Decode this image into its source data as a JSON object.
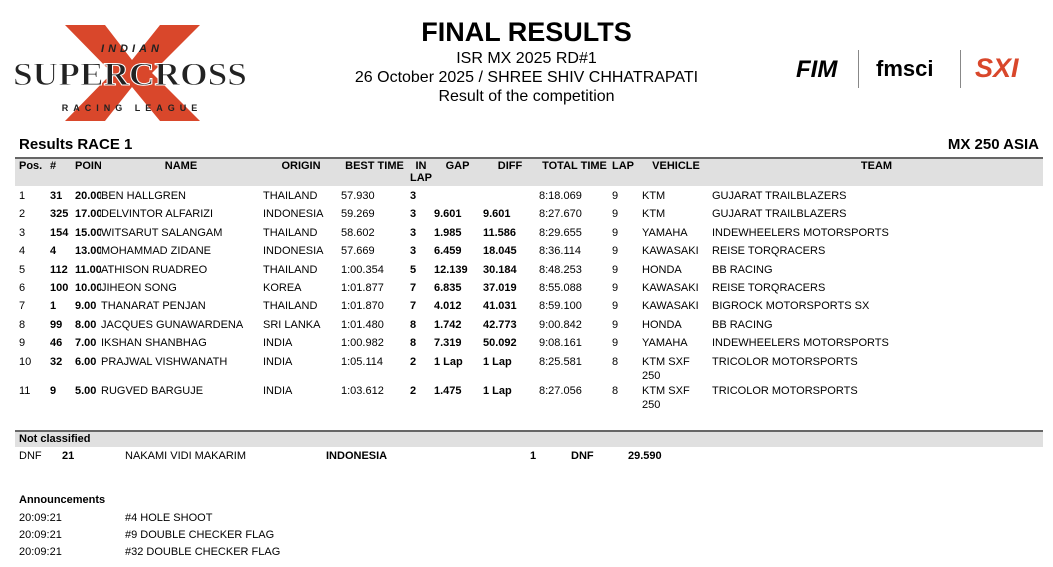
{
  "header": {
    "title": "FINAL RESULTS",
    "subtitle": "ISR MX 2025 RD#1",
    "date_venue": "26 October 2025 / SHREE SHIV CHHATRAPATI",
    "description": "Result of the competition"
  },
  "logo": {
    "top": "INDIAN",
    "main": "SUPERCROSS",
    "bottom": "RACING LEAGUE"
  },
  "partners": [
    "FIM",
    "fmsci",
    "SXI"
  ],
  "section": {
    "title": "Results RACE 1",
    "class": "MX 250 ASIA"
  },
  "table": {
    "columns": [
      "Pos.",
      "#",
      "POIN",
      "NAME",
      "ORIGIN",
      "BEST TIME",
      "IN LAP",
      "GAP",
      "DIFF",
      "TOTAL TIME",
      "LAP",
      "VEHICLE",
      "TEAM"
    ],
    "rows": [
      [
        "1",
        "31",
        "20.00",
        "BEN HALLGREN",
        "THAILAND",
        "57.930",
        "3",
        null,
        null,
        "8:18.069",
        "9",
        "KTM",
        "GUJARAT TRAILBLAZERS"
      ],
      [
        "2",
        "325",
        "17.00",
        "DELVINTOR ALFARIZI",
        "INDONESIA",
        "59.269",
        "3",
        "9.601",
        "9.601",
        "8:27.670",
        "9",
        "KTM",
        "GUJARAT TRAILBLAZERS"
      ],
      [
        "3",
        "154",
        "15.00",
        "WITSARUT SALANGAM",
        "THAILAND",
        "58.602",
        "3",
        "1.985",
        "11.586",
        "8:29.655",
        "9",
        "YAMAHA",
        "INDEWHEELERS MOTORSPORTS"
      ],
      [
        "4",
        "4",
        "13.00",
        "MOHAMMAD ZIDANE",
        "INDONESIA",
        "57.669",
        "3",
        "6.459",
        "18.045",
        "8:36.114",
        "9",
        "KAWASAKI",
        "REISE TORQRACERS"
      ],
      [
        "5",
        "112",
        "11.00",
        "ATHISON RUADREO",
        "THAILAND",
        "1:00.354",
        "5",
        "12.139",
        "30.184",
        "8:48.253",
        "9",
        "HONDA",
        "BB RACING"
      ],
      [
        "6",
        "100",
        "10.00",
        "JIHEON SONG",
        "KOREA",
        "1:01.877",
        "7",
        "6.835",
        "37.019",
        "8:55.088",
        "9",
        "KAWASAKI",
        "REISE TORQRACERS"
      ],
      [
        "7",
        "1",
        "9.00",
        "THANARAT PENJAN",
        "THAILAND",
        "1:01.870",
        "7",
        "4.012",
        "41.031",
        "8:59.100",
        "9",
        "KAWASAKI",
        "BIGROCK MOTORSPORTS SX"
      ],
      [
        "8",
        "99",
        "8.00",
        "JACQUES GUNAWARDENA",
        "SRI LANKA",
        "1:01.480",
        "8",
        "1.742",
        "42.773",
        "9:00.842",
        "9",
        "HONDA",
        "BB RACING"
      ],
      [
        "9",
        "46",
        "7.00",
        "IKSHAN SHANBHAG",
        "INDIA",
        "1:00.982",
        "8",
        "7.319",
        "50.092",
        "9:08.161",
        "9",
        "YAMAHA",
        "INDEWHEELERS MOTORSPORTS"
      ],
      [
        "10",
        "32",
        "6.00",
        "PRAJWAL VISHWANATH",
        "INDIA",
        "1:05.114",
        "2",
        "1 Lap",
        "1 Lap",
        "8:25.581",
        "8",
        "KTM SXF 250",
        "TRICOLOR MOTORSPORTS"
      ],
      [
        "11",
        "9",
        "5.00",
        "RUGVED BARGUJE",
        "INDIA",
        "1:03.612",
        "2",
        "1.475",
        "1 Lap",
        "8:27.056",
        "8",
        "KTM SXF 250",
        "TRICOLOR MOTORSPORTS"
      ]
    ]
  },
  "not_classified": {
    "title": "Not classified",
    "row": [
      "DNF",
      "21",
      "NAKAMI VIDI MAKARIM",
      "INDONESIA",
      "1",
      "DNF",
      "29.590"
    ]
  },
  "announcements": {
    "title": "Announcements",
    "items": [
      {
        "time": "20:09:21",
        "text": "#4 HOLE SHOOT"
      },
      {
        "time": "20:09:21",
        "text": "#9 DOUBLE CHECKER FLAG"
      },
      {
        "time": "20:09:21",
        "text": "#32 DOUBLE CHECKER FLAG"
      }
    ]
  }
}
